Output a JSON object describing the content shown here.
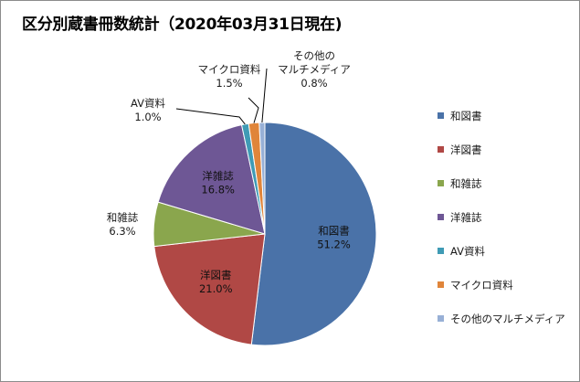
{
  "chart_data": {
    "type": "pie",
    "title": "区分別蔵書冊数統計（2020年03月31日現在)",
    "categories": [
      "和図書",
      "洋図書",
      "和雑誌",
      "洋雑誌",
      "AV資料",
      "マイクロ資料",
      "その他のマルチメディア"
    ],
    "values": [
      51.2,
      21.0,
      6.3,
      16.8,
      1.0,
      1.5,
      0.8
    ],
    "value_labels": [
      "51.2%",
      "21.0%",
      "6.3%",
      "16.8%",
      "1.0%",
      "1.5%",
      "0.8%"
    ],
    "colors": [
      "#4a72a8",
      "#b04845",
      "#8aa64d",
      "#6e5795",
      "#3f9bb5",
      "#e0853a",
      "#98b0d6"
    ],
    "slice_labels": [
      "和図書",
      "洋図書",
      "和雑誌",
      "洋雑誌",
      "AV資料",
      "マイクロ資料",
      "その他の\nマルチメディア"
    ],
    "legend": {
      "position": "right",
      "entries": [
        "和図書",
        "洋図書",
        "和雑誌",
        "洋雑誌",
        "AV資料",
        "マイクロ資料",
        "その他のマルチメディア"
      ]
    }
  }
}
